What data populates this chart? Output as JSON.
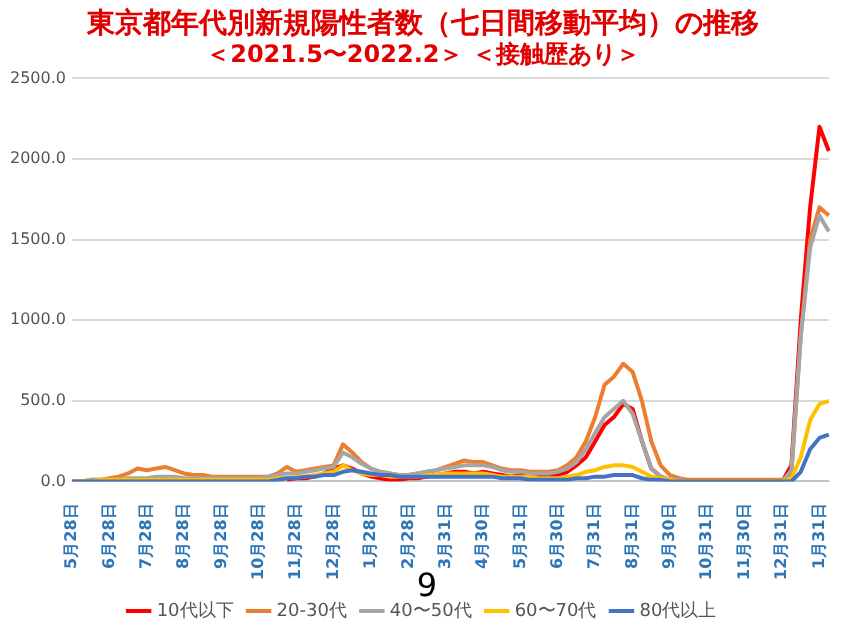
{
  "chart_data": {
    "type": "line",
    "title": "東京都年代別新規陽性者数（七日間移動平均）の推移",
    "subtitle": "＜2021.5〜2022.2＞ ＜接触歴あり＞",
    "categories": [
      "5月28日",
      null,
      null,
      null,
      "6月28日",
      null,
      null,
      null,
      "7月28日",
      null,
      null,
      null,
      "8月28日",
      null,
      null,
      null,
      "9月28日",
      null,
      null,
      null,
      "10月28日",
      null,
      null,
      null,
      "11月28日",
      null,
      null,
      null,
      "12月28日",
      null,
      null,
      null,
      "1月28日",
      null,
      null,
      null,
      "2月28日",
      null,
      null,
      null,
      "3月31日",
      null,
      null,
      null,
      "4月30日",
      null,
      null,
      null,
      "5月31日",
      null,
      null,
      null,
      "6月30日",
      null,
      null,
      null,
      "7月31日",
      null,
      null,
      null,
      "8月31日",
      null,
      null,
      null,
      "9月30日",
      null,
      null,
      null,
      "10月31日",
      null,
      null,
      null,
      "11月30日",
      null,
      null,
      null,
      "12月31日",
      null,
      null,
      null,
      "1月31日",
      null
    ],
    "series": [
      {
        "name": "10代以下",
        "color": "#ff0000",
        "values": [
          null,
          null,
          null,
          null,
          null,
          null,
          null,
          null,
          null,
          null,
          null,
          null,
          null,
          null,
          null,
          null,
          null,
          null,
          null,
          null,
          null,
          null,
          null,
          10,
          20,
          20,
          30,
          50,
          80,
          100,
          80,
          50,
          30,
          20,
          10,
          10,
          20,
          20,
          30,
          40,
          50,
          60,
          60,
          50,
          60,
          50,
          40,
          30,
          40,
          30,
          30,
          30,
          40,
          60,
          100,
          150,
          250,
          350,
          400,
          480,
          450,
          250,
          80,
          30,
          10,
          0,
          0,
          0,
          0,
          0,
          0,
          0,
          0,
          0,
          0,
          0,
          0,
          100,
          1000,
          1700,
          2200,
          2050
        ]
      },
      {
        "name": "20-30代",
        "color": "#ed7d31",
        "values": [
          0,
          0,
          10,
          10,
          20,
          30,
          50,
          80,
          70,
          80,
          90,
          70,
          50,
          40,
          40,
          30,
          30,
          30,
          30,
          30,
          30,
          30,
          50,
          90,
          60,
          70,
          80,
          90,
          100,
          230,
          180,
          120,
          80,
          60,
          50,
          40,
          40,
          50,
          60,
          70,
          90,
          110,
          130,
          120,
          120,
          100,
          80,
          70,
          70,
          60,
          60,
          60,
          70,
          100,
          150,
          250,
          400,
          600,
          650,
          730,
          680,
          500,
          250,
          100,
          40,
          20,
          10,
          10,
          10,
          10,
          10,
          10,
          10,
          10,
          10,
          10,
          10,
          50,
          900,
          1500,
          1700,
          1650
        ]
      },
      {
        "name": "40〜50代",
        "color": "#a5a5a5",
        "values": [
          0,
          0,
          10,
          10,
          10,
          10,
          20,
          20,
          20,
          30,
          30,
          30,
          20,
          20,
          20,
          20,
          20,
          20,
          20,
          20,
          20,
          30,
          40,
          50,
          50,
          60,
          70,
          80,
          90,
          180,
          150,
          110,
          80,
          60,
          50,
          40,
          40,
          50,
          60,
          70,
          80,
          90,
          100,
          100,
          100,
          90,
          70,
          60,
          60,
          50,
          50,
          50,
          60,
          80,
          120,
          200,
          300,
          400,
          450,
          500,
          420,
          250,
          80,
          30,
          10,
          10,
          0,
          0,
          0,
          0,
          0,
          0,
          0,
          0,
          0,
          0,
          0,
          70,
          900,
          1450,
          1650,
          1550
        ]
      },
      {
        "name": "60〜70代",
        "color": "#ffc000",
        "values": [
          0,
          0,
          0,
          10,
          10,
          10,
          10,
          10,
          10,
          10,
          10,
          10,
          10,
          10,
          10,
          10,
          10,
          10,
          10,
          10,
          10,
          10,
          20,
          20,
          30,
          30,
          40,
          50,
          60,
          100,
          70,
          50,
          40,
          40,
          30,
          30,
          30,
          30,
          40,
          40,
          50,
          50,
          50,
          50,
          50,
          40,
          30,
          30,
          30,
          30,
          20,
          20,
          20,
          30,
          40,
          60,
          70,
          90,
          100,
          100,
          90,
          60,
          30,
          20,
          10,
          0,
          0,
          0,
          0,
          0,
          0,
          0,
          0,
          0,
          0,
          0,
          0,
          20,
          150,
          380,
          480,
          500
        ]
      },
      {
        "name": "80代以上",
        "color": "#4472c4",
        "values": [
          0,
          0,
          0,
          0,
          0,
          0,
          0,
          0,
          0,
          0,
          0,
          0,
          0,
          0,
          0,
          0,
          0,
          0,
          0,
          0,
          0,
          0,
          10,
          20,
          20,
          30,
          30,
          40,
          40,
          60,
          70,
          60,
          50,
          40,
          40,
          30,
          30,
          30,
          30,
          30,
          30,
          30,
          30,
          30,
          30,
          30,
          20,
          20,
          20,
          10,
          10,
          10,
          10,
          10,
          20,
          20,
          30,
          30,
          40,
          40,
          40,
          20,
          10,
          10,
          0,
          0,
          0,
          0,
          0,
          0,
          0,
          0,
          0,
          0,
          0,
          0,
          0,
          0,
          60,
          200,
          270,
          290
        ]
      }
    ],
    "ylim": [
      0,
      2500
    ],
    "yticks": [
      {
        "value": 0,
        "label": "0.0"
      },
      {
        "value": 500,
        "label": "500.0"
      },
      {
        "value": 1000,
        "label": "1000.0"
      },
      {
        "value": 1500,
        "label": "1500.0"
      },
      {
        "value": 2000,
        "label": "2000.0"
      },
      {
        "value": 2500,
        "label": "2500.0"
      }
    ],
    "grid": "y",
    "legend": "bottom",
    "marker": "none",
    "line_style": "solid",
    "annotations": [
      "9"
    ]
  }
}
